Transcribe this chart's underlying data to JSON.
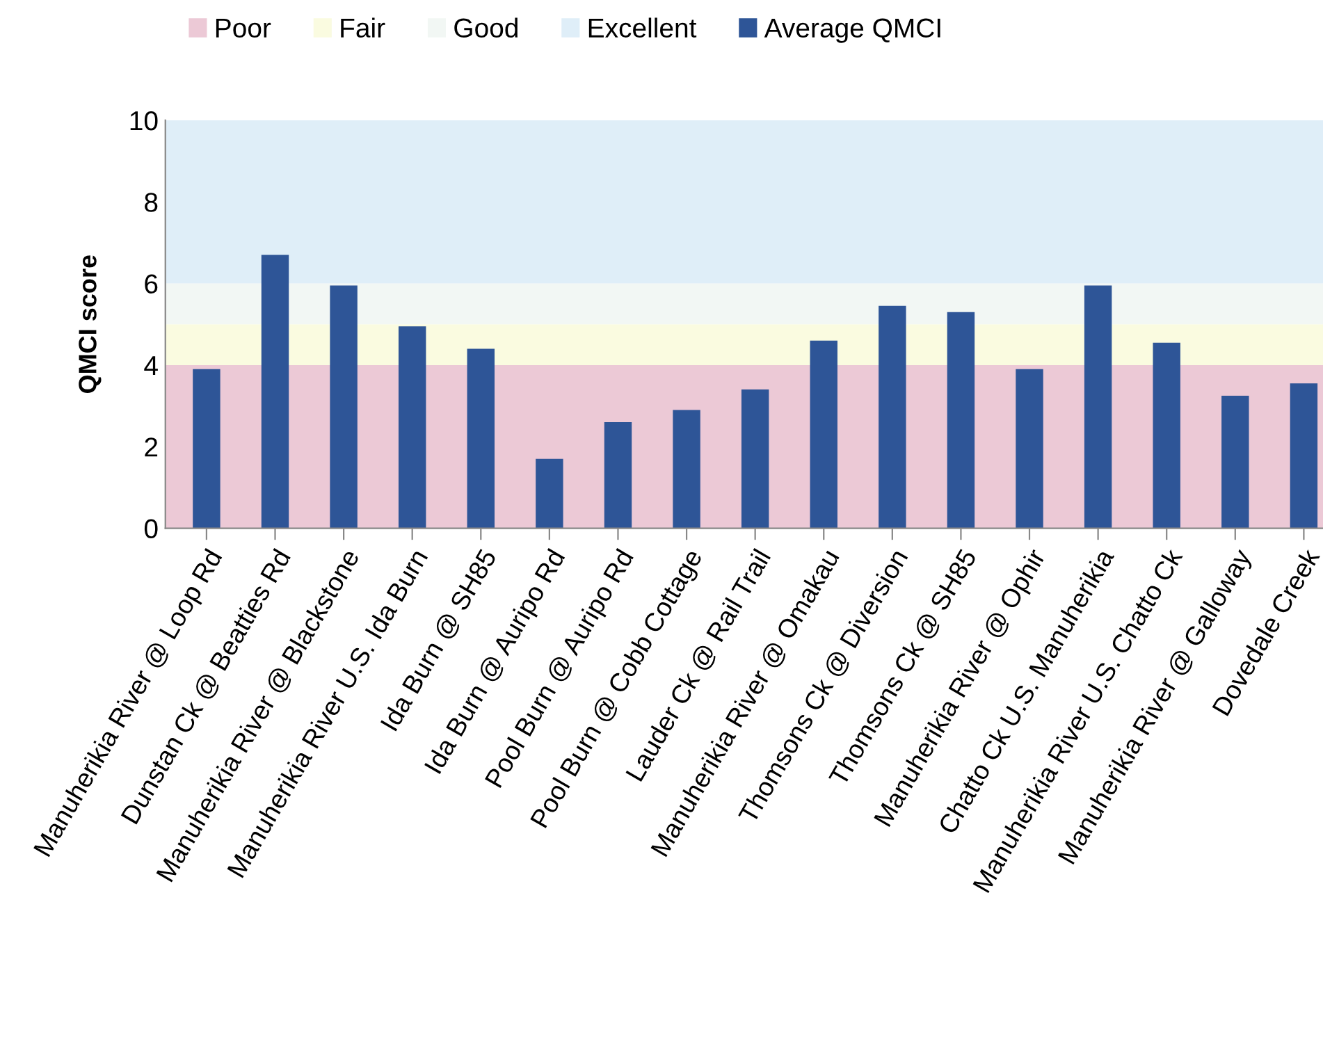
{
  "chart_data": {
    "type": "bar",
    "ylabel": "QMCI score",
    "categories": [
      "Manuherikia River @ Loop Rd",
      "Dunstan Ck @ Beatties Rd",
      "Manuherikia River @ Blackstone",
      "Manuherikia River U.S. Ida Burn",
      "Ida Burn @ SH85",
      "Ida Burn @ Auripo Rd",
      "Pool Burn @ Auripo Rd",
      "Pool Burn @ Cobb Cottage",
      "Lauder Ck @ Rail Trail",
      "Manuherikia River @ Omakau",
      "Thomsons Ck @ Diversion",
      "Thomsons Ck @ SH85",
      "Manuherikia River @ Ophir",
      "Chatto Ck U.S. Manuherikia",
      "Manuherikia River U.S. Chatto Ck",
      "Manuherikia River @ Galloway",
      "Dovedale Creek"
    ],
    "series": [
      {
        "name": "Average QMCI",
        "color": "#2e5597",
        "values": [
          3.9,
          6.7,
          5.95,
          4.95,
          4.4,
          1.7,
          2.6,
          2.9,
          3.4,
          4.6,
          5.45,
          5.3,
          3.9,
          5.95,
          4.55,
          3.25,
          3.55
        ]
      }
    ],
    "bands": [
      {
        "axis": "y",
        "from": 0,
        "to": 4,
        "label": "Poor",
        "color": "#ecc9d6"
      },
      {
        "axis": "y",
        "from": 4,
        "to": 5,
        "label": "Fair",
        "color": "#fafbe0"
      },
      {
        "axis": "y",
        "from": 5,
        "to": 6,
        "label": "Good",
        "color": "#f2f7f4"
      },
      {
        "axis": "y",
        "from": 6,
        "to": 10,
        "label": "Excellent",
        "color": "#dfeef8"
      }
    ],
    "ylim": [
      0,
      10
    ],
    "yticks": [
      0,
      2,
      4,
      6,
      8,
      10
    ],
    "grid": false,
    "legend": "top"
  }
}
